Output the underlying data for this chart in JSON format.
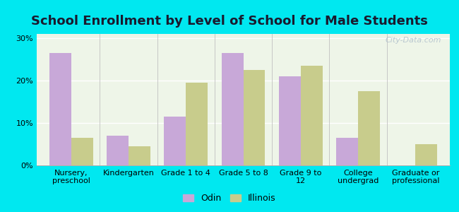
{
  "title": "School Enrollment by Level of School for Male Students",
  "categories": [
    "Nursery,\npreschool",
    "Kindergarten",
    "Grade 1 to 4",
    "Grade 5 to 8",
    "Grade 9 to\n12",
    "College\nundergrad",
    "Graduate or\nprofessional"
  ],
  "odin": [
    26.5,
    7.0,
    11.5,
    26.5,
    21.0,
    6.5,
    0.0
  ],
  "illinois": [
    6.5,
    4.5,
    19.5,
    22.5,
    23.5,
    17.5,
    5.0
  ],
  "odin_color": "#c8a8d8",
  "illinois_color": "#c8cc8c",
  "background_outer": "#00e8f0",
  "background_inner": "#eef5e8",
  "ylim": [
    0,
    31
  ],
  "yticks": [
    0,
    10,
    20,
    30
  ],
  "ytick_labels": [
    "0%",
    "10%",
    "20%",
    "30%"
  ],
  "legend_labels": [
    "Odin",
    "Illinois"
  ],
  "title_fontsize": 13,
  "tick_fontsize": 8,
  "legend_fontsize": 9,
  "bar_width": 0.38,
  "watermark": "City-Data.com"
}
